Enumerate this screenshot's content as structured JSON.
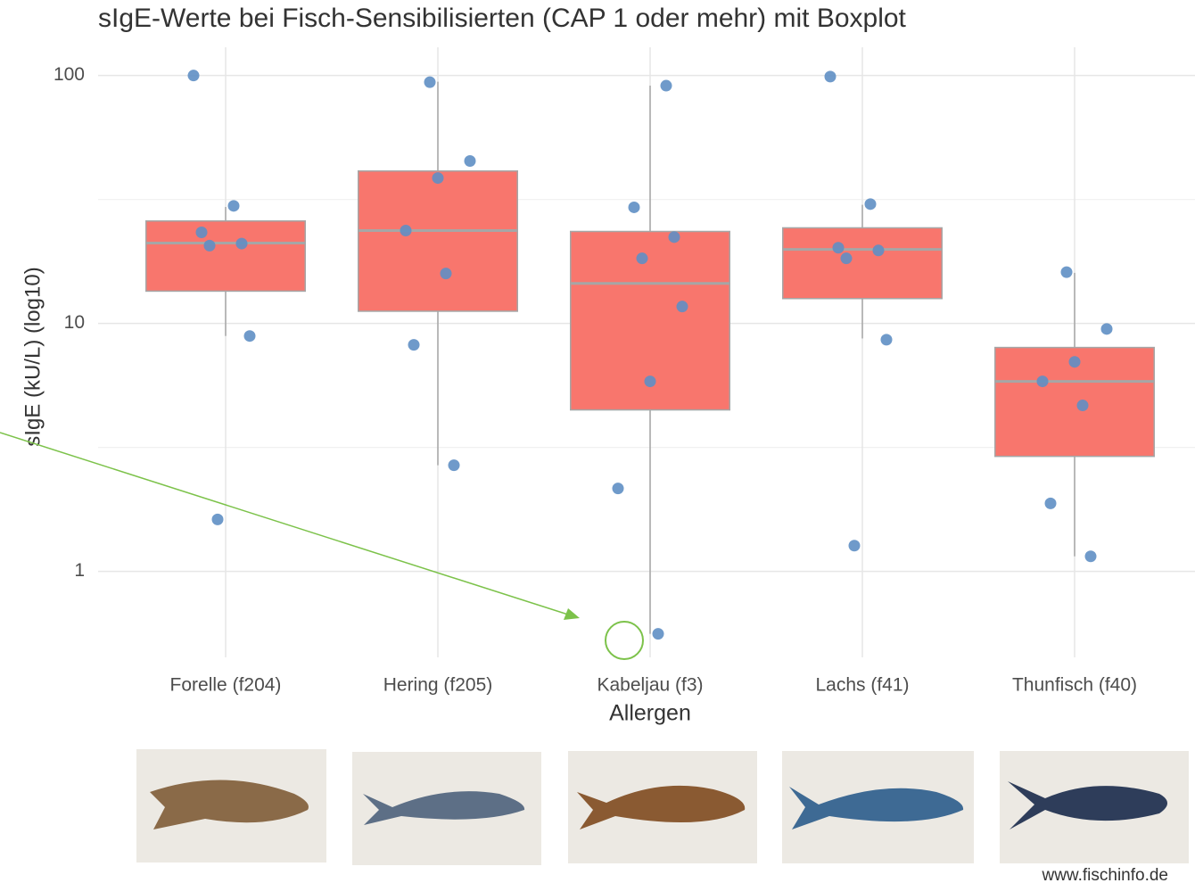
{
  "chart_data": {
    "type": "boxplot",
    "title": "sIgE-Werte bei Fisch-Sensibilisierten (CAP 1 oder mehr) mit Boxplot",
    "x_label": "Allergen",
    "y_label": "sIgE (kU/L) (log10)",
    "log_scale_y": true,
    "grid": true,
    "ylim": [
      0.45,
      130
    ],
    "yticks": [
      1,
      10,
      100
    ],
    "y_minor_gridlines": [
      3.162,
      31.62
    ],
    "box_color": "#f8766d",
    "point_color": "#5f8fc4",
    "categories": [
      "Forelle (f204)",
      "Hering (f205)",
      "Kabeljau (f3)",
      "Lachs (f41)",
      "Thunfisch (f40)"
    ],
    "boxes": [
      {
        "whisker_low": 8.9,
        "q1": 13.5,
        "median": 21.1,
        "q3": 25.9,
        "whisker_high": 29.5
      },
      {
        "whisker_low": 2.68,
        "q1": 11.2,
        "median": 23.7,
        "q3": 41.2,
        "whisker_high": 94.4
      },
      {
        "whisker_low": 0.56,
        "q1": 4.48,
        "median": 14.5,
        "q3": 23.5,
        "whisker_high": 91
      },
      {
        "whisker_low": 8.7,
        "q1": 12.6,
        "median": 19.9,
        "q3": 24.3,
        "whisker_high": 30.1
      },
      {
        "whisker_low": 1.15,
        "q1": 2.91,
        "median": 5.84,
        "q3": 8.0,
        "whisker_high": 16.0
      }
    ],
    "points": [
      [
        100,
        29.8,
        23.3,
        21.0,
        20.6,
        8.9,
        1.62
      ],
      [
        94,
        45.2,
        38.6,
        23.7,
        15.9,
        8.2,
        2.68
      ],
      [
        91,
        29.4,
        22.3,
        18.3,
        11.7,
        5.84,
        2.16,
        0.56
      ],
      [
        99,
        30.3,
        20.2,
        19.7,
        18.3,
        8.6,
        1.27
      ],
      [
        16.1,
        9.5,
        7.0,
        5.84,
        4.67,
        1.88,
        1.15
      ]
    ],
    "source": "www.fischinfo.de"
  }
}
